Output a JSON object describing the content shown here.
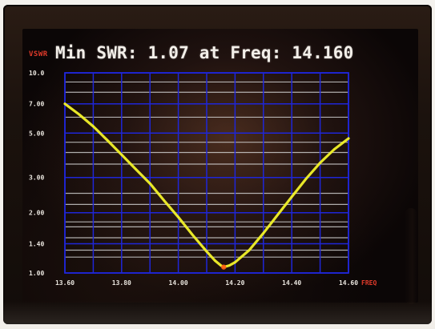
{
  "display": {
    "title": "Min SWR: 1.07 at Freq: 14.160",
    "y_unit_label": "VSWR",
    "x_unit_label": "FREQ"
  },
  "chart_data": {
    "type": "line",
    "title": "Min SWR: 1.07 at Freq: 14.160",
    "xlabel": "FREQ",
    "ylabel": "VSWR",
    "x_scale": "linear",
    "y_scale": "log",
    "xlim": [
      13.6,
      14.6
    ],
    "ylim": [
      1.0,
      10.0
    ],
    "x_ticks": [
      "13.60",
      "13.80",
      "14.00",
      "14.20",
      "14.40",
      "14.60"
    ],
    "y_ticks": [
      "10.0",
      "7.00",
      "5.00",
      "3.00",
      "2.00",
      "1.40",
      "1.00"
    ],
    "grid": true,
    "series": [
      {
        "color": "#f2f22a",
        "x": [
          13.6,
          13.65,
          13.7,
          13.75,
          13.8,
          13.85,
          13.9,
          13.95,
          14.0,
          14.05,
          14.1,
          14.13,
          14.15,
          14.16,
          14.18,
          14.2,
          14.25,
          14.3,
          14.35,
          14.4,
          14.45,
          14.5,
          14.55,
          14.6
        ],
        "y": [
          7.0,
          6.2,
          5.4,
          4.6,
          3.9,
          3.3,
          2.8,
          2.3,
          1.9,
          1.55,
          1.28,
          1.15,
          1.09,
          1.07,
          1.09,
          1.13,
          1.3,
          1.58,
          1.95,
          2.4,
          2.95,
          3.55,
          4.15,
          4.7
        ]
      }
    ]
  },
  "colors": {
    "grid_blue": "#1f26d8",
    "grid_white": "#d6d6d6",
    "axis_text": "#e9e5de",
    "unit_red": "#e03a2a",
    "trace_yellow": "#f2f22a",
    "min_marker": "#ff5a14"
  }
}
